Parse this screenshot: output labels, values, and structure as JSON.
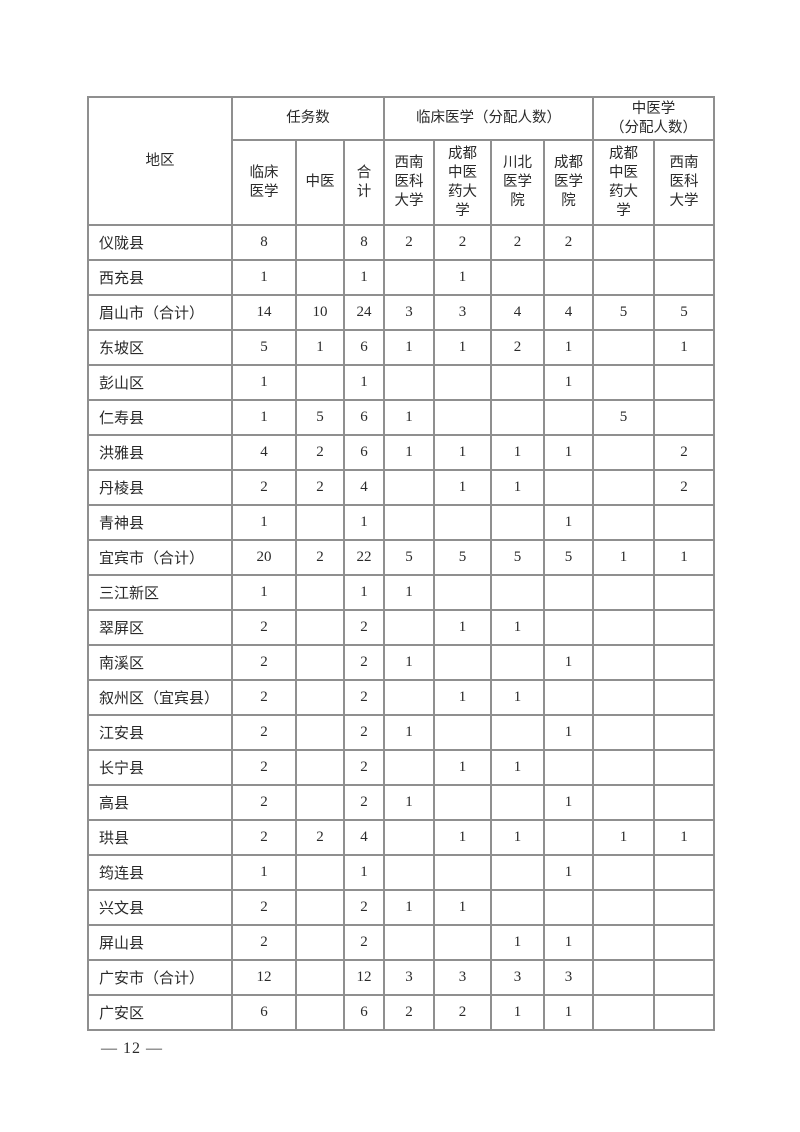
{
  "colors": {
    "page_background": "#ffffff",
    "table_border": "#8f8f8f",
    "text": "#2a2a2a"
  },
  "table": {
    "header": {
      "region_label": "地区",
      "groups": [
        {
          "label": "任务数"
        },
        {
          "label": "临床医学（分配人数）"
        },
        {
          "label": "中医学\n（分配人数）"
        }
      ],
      "subheaders": [
        "临床\n医学",
        "中医",
        "合\n计",
        "西南\n医科\n大学",
        "成都\n中医\n药大\n学",
        "川北\n医学\n院",
        "成都\n医学\n院",
        "成都\n中医\n药大\n学",
        "西南\n医科\n大学"
      ]
    },
    "rows": [
      {
        "region": "仪陇县",
        "values": [
          "8",
          "",
          "8",
          "2",
          "2",
          "2",
          "2",
          "",
          ""
        ]
      },
      {
        "region": "西充县",
        "values": [
          "1",
          "",
          "1",
          "",
          "1",
          "",
          "",
          "",
          ""
        ]
      },
      {
        "region": "眉山市（合计）",
        "values": [
          "14",
          "10",
          "24",
          "3",
          "3",
          "4",
          "4",
          "5",
          "5"
        ]
      },
      {
        "region": "东坡区",
        "values": [
          "5",
          "1",
          "6",
          "1",
          "1",
          "2",
          "1",
          "",
          "1"
        ]
      },
      {
        "region": "彭山区",
        "values": [
          "1",
          "",
          "1",
          "",
          "",
          "",
          "1",
          "",
          ""
        ]
      },
      {
        "region": "仁寿县",
        "values": [
          "1",
          "5",
          "6",
          "1",
          "",
          "",
          "",
          "5",
          ""
        ]
      },
      {
        "region": "洪雅县",
        "values": [
          "4",
          "2",
          "6",
          "1",
          "1",
          "1",
          "1",
          "",
          "2"
        ]
      },
      {
        "region": "丹棱县",
        "values": [
          "2",
          "2",
          "4",
          "",
          "1",
          "1",
          "",
          "",
          "2"
        ]
      },
      {
        "region": "青神县",
        "values": [
          "1",
          "",
          "1",
          "",
          "",
          "",
          "1",
          "",
          ""
        ]
      },
      {
        "region": "宜宾市（合计）",
        "values": [
          "20",
          "2",
          "22",
          "5",
          "5",
          "5",
          "5",
          "1",
          "1"
        ]
      },
      {
        "region": "三江新区",
        "values": [
          "1",
          "",
          "1",
          "1",
          "",
          "",
          "",
          "",
          ""
        ]
      },
      {
        "region": "翠屏区",
        "values": [
          "2",
          "",
          "2",
          "",
          "1",
          "1",
          "",
          "",
          ""
        ]
      },
      {
        "region": "南溪区",
        "values": [
          "2",
          "",
          "2",
          "1",
          "",
          "",
          "1",
          "",
          ""
        ]
      },
      {
        "region": "叙州区（宜宾县）",
        "values": [
          "2",
          "",
          "2",
          "",
          "1",
          "1",
          "",
          "",
          ""
        ]
      },
      {
        "region": "江安县",
        "values": [
          "2",
          "",
          "2",
          "1",
          "",
          "",
          "1",
          "",
          ""
        ]
      },
      {
        "region": "长宁县",
        "values": [
          "2",
          "",
          "2",
          "",
          "1",
          "1",
          "",
          "",
          ""
        ]
      },
      {
        "region": "高县",
        "values": [
          "2",
          "",
          "2",
          "1",
          "",
          "",
          "1",
          "",
          ""
        ]
      },
      {
        "region": "珙县",
        "values": [
          "2",
          "2",
          "4",
          "",
          "1",
          "1",
          "",
          "1",
          "1"
        ]
      },
      {
        "region": "筠连县",
        "values": [
          "1",
          "",
          "1",
          "",
          "",
          "",
          "1",
          "",
          ""
        ]
      },
      {
        "region": "兴文县",
        "values": [
          "2",
          "",
          "2",
          "1",
          "1",
          "",
          "",
          "",
          ""
        ]
      },
      {
        "region": "屏山县",
        "values": [
          "2",
          "",
          "2",
          "",
          "",
          "1",
          "1",
          "",
          ""
        ]
      },
      {
        "region": "广安市（合计）",
        "values": [
          "12",
          "",
          "12",
          "3",
          "3",
          "3",
          "3",
          "",
          ""
        ]
      },
      {
        "region": "广安区",
        "values": [
          "6",
          "",
          "6",
          "2",
          "2",
          "1",
          "1",
          "",
          ""
        ]
      }
    ]
  },
  "footer": {
    "page_number": "— 12 —"
  }
}
